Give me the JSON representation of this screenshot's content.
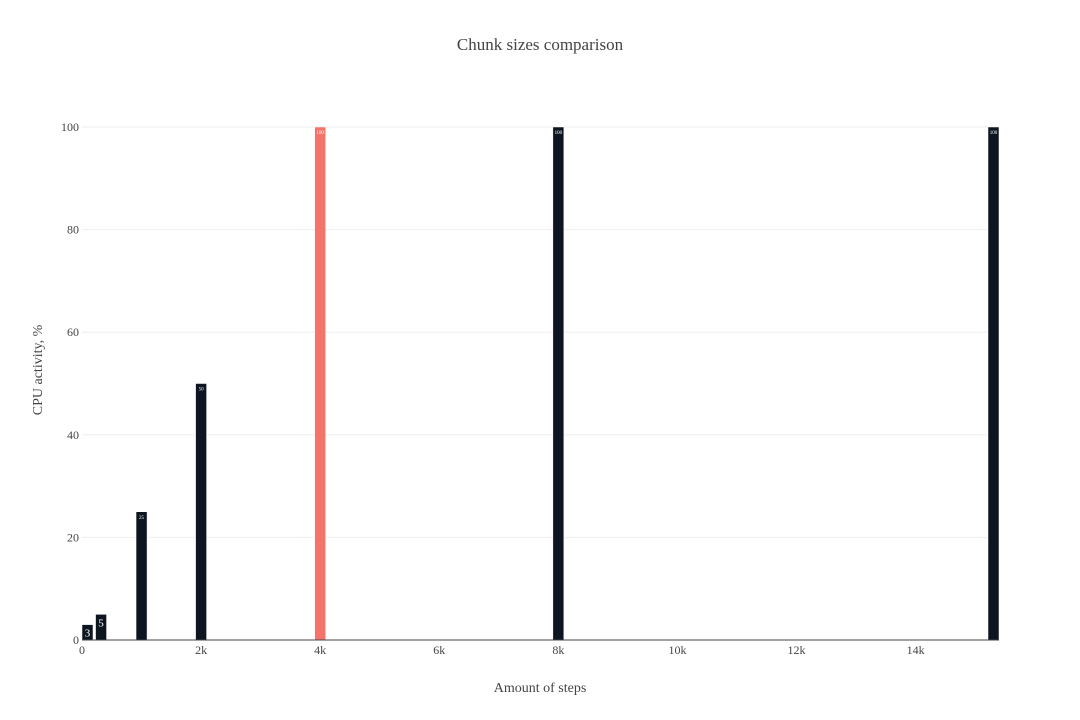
{
  "chart_data": {
    "type": "bar",
    "title": "Chunk sizes comparison",
    "xlabel": "Amount of steps",
    "ylabel": "CPU activity, %",
    "xlim": [
      0,
      15400
    ],
    "ylim": [
      0,
      100
    ],
    "x_ticks": [
      0,
      2000,
      4000,
      6000,
      8000,
      10000,
      12000,
      14000
    ],
    "x_tick_labels": [
      "0",
      "2k",
      "4k",
      "6k",
      "8k",
      "10k",
      "12k",
      "14k"
    ],
    "y_ticks": [
      0,
      20,
      40,
      60,
      80,
      100
    ],
    "y_tick_labels": [
      "0",
      "20",
      "40",
      "60",
      "80",
      "100"
    ],
    "grid": true,
    "bars": [
      {
        "x": 80,
        "value": 3,
        "label": "3",
        "color": "#0d1520"
      },
      {
        "x": 320,
        "value": 5,
        "label": "5",
        "color": "#0d1520"
      },
      {
        "x": 1000,
        "value": 25,
        "label": "25",
        "color": "#0d1520"
      },
      {
        "x": 2000,
        "value": 50,
        "label": "50",
        "color": "#0d1520"
      },
      {
        "x": 4000,
        "value": 100,
        "label": "100",
        "color": "#f4736b"
      },
      {
        "x": 8000,
        "value": 100,
        "label": "100",
        "color": "#0d1520"
      },
      {
        "x": 15400,
        "value": 100,
        "label": "100",
        "color": "#0d1520"
      }
    ]
  }
}
